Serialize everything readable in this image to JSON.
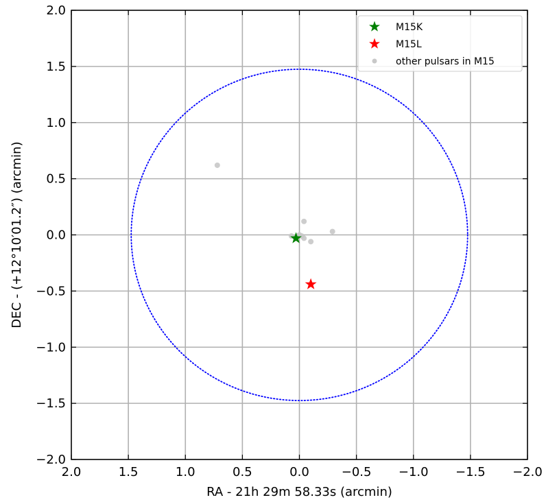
{
  "chart_data": {
    "type": "scatter",
    "title": "",
    "xlabel": "RA - 21h 29m 58.33s (arcmin)",
    "ylabel": "DEC - (+12°10′01.2″)  (arcmin)",
    "xlim": [
      2.0,
      -2.0
    ],
    "ylim": [
      -2.0,
      2.0
    ],
    "x_inverted": true,
    "grid": true,
    "legend_position": "top-right",
    "xticks": [
      2.0,
      1.5,
      1.0,
      0.5,
      0.0,
      -0.5,
      -1.0,
      -1.5,
      -2.0
    ],
    "xtick_labels": [
      "2.0",
      "1.5",
      "1.0",
      "0.5",
      "0.0",
      "−0.5",
      "−1.0",
      "−1.5",
      "−2.0"
    ],
    "yticks": [
      2.0,
      1.5,
      1.0,
      0.5,
      0.0,
      -0.5,
      -1.0,
      -1.5,
      -2.0
    ],
    "ytick_labels": [
      "2.0",
      "1.5",
      "1.0",
      "0.5",
      "0.0",
      "−0.5",
      "−1.0",
      "−1.5",
      "−2.0"
    ],
    "series": [
      {
        "name": "M15K",
        "marker": "star",
        "color": "#008000",
        "points": [
          [
            0.03,
            -0.03
          ]
        ]
      },
      {
        "name": "M15L",
        "marker": "star",
        "color": "#ff0000",
        "points": [
          [
            -0.1,
            -0.44
          ]
        ]
      },
      {
        "name": "other pulsars in M15",
        "marker": "circle",
        "color": "#c8c8c8",
        "points": [
          [
            0.72,
            0.62
          ],
          [
            -0.04,
            0.12
          ],
          [
            -0.29,
            0.03
          ],
          [
            -0.1,
            -0.06
          ],
          [
            -0.04,
            -0.03
          ],
          [
            -0.02,
            -0.01
          ],
          [
            0.0,
            0.0
          ],
          [
            0.02,
            -0.01
          ],
          [
            0.07,
            -0.01
          ],
          [
            0.04,
            -0.02
          ]
        ]
      }
    ],
    "circle": {
      "center": [
        0.0,
        0.0
      ],
      "radius": 1.475,
      "color": "#0000ff",
      "style": "dotted"
    }
  }
}
